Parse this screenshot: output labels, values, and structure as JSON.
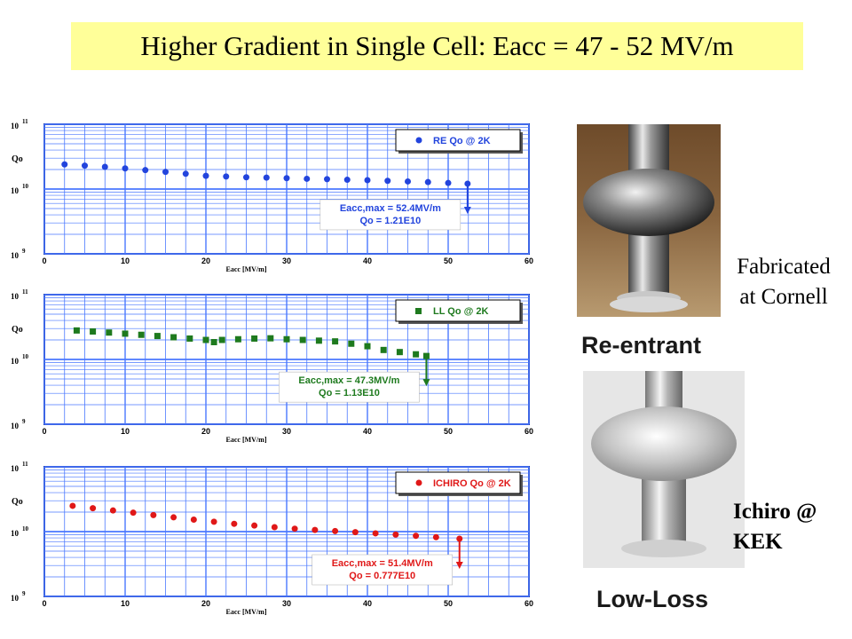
{
  "title": "Higher Gradient in Single Cell: Eacc = 47 - 52 MV/m",
  "captions": {
    "fabricated": [
      "Fabricated",
      "at Cornell"
    ],
    "ichiro": [
      "Ichiro @",
      "KEK"
    ]
  },
  "cavity_labels": {
    "re": "Re-entrant",
    "ll": "Low-Loss"
  },
  "chart_data": [
    {
      "type": "scatter",
      "xlabel": "Eacc [MV/m]",
      "ylabel": "Qo",
      "xlim": [
        0,
        60
      ],
      "ylim_log10": [
        9,
        11
      ],
      "x_ticks": [
        "0",
        "10",
        "20",
        "30",
        "40",
        "50",
        "60"
      ],
      "y_ticks": [
        "10 11",
        "10 10",
        "10 9"
      ],
      "legend": "RE Qo @ 2K",
      "legend_position": "top-right",
      "color": "#2244dd",
      "marker": "circle",
      "series": [
        {
          "name": "RE Qo @ 2K",
          "x": [
            2.5,
            5,
            7.5,
            10,
            12.5,
            15,
            17.5,
            20,
            22.5,
            25,
            27.5,
            30,
            32.5,
            35,
            37.5,
            40,
            42.5,
            45,
            47.5,
            50,
            52.4
          ],
          "y": [
            24000000000.0,
            23000000000.0,
            22000000000.0,
            20800000000.0,
            19600000000.0,
            18400000000.0,
            17200000000.0,
            16000000000.0,
            15600000000.0,
            15200000000.0,
            15000000000.0,
            14700000000.0,
            14400000000.0,
            14200000000.0,
            13900000000.0,
            13700000000.0,
            13400000000.0,
            13100000000.0,
            12800000000.0,
            12400000000.0,
            12100000000.0
          ]
        }
      ],
      "annotation": [
        "Eacc,max = 52.4MV/m",
        "Qo = 1.21E10"
      ],
      "arrow_x": 52.4
    },
    {
      "type": "scatter",
      "xlabel": "Eacc [MV/m]",
      "ylabel": "Qo",
      "xlim": [
        0,
        60
      ],
      "ylim_log10": [
        9,
        11
      ],
      "x_ticks": [
        "0",
        "10",
        "20",
        "30",
        "40",
        "50",
        "60"
      ],
      "y_ticks": [
        "10 11",
        "10 10",
        "10 9"
      ],
      "legend": "LL Qo @ 2K",
      "legend_position": "top-right",
      "color": "#1e7a1e",
      "marker": "square",
      "series": [
        {
          "name": "LL Qo @ 2K",
          "x": [
            4,
            6,
            8,
            10,
            12,
            14,
            16,
            18,
            20,
            21,
            22,
            24,
            26,
            28,
            30,
            32,
            34,
            36,
            38,
            40,
            42,
            44,
            46,
            47.3
          ],
          "y": [
            28000000000.0,
            27000000000.0,
            26000000000.0,
            25000000000.0,
            24000000000.0,
            23000000000.0,
            22000000000.0,
            21000000000.0,
            20000000000.0,
            18500000000.0,
            20000000000.0,
            20500000000.0,
            21000000000.0,
            21200000000.0,
            20500000000.0,
            20000000000.0,
            19500000000.0,
            19000000000.0,
            17500000000.0,
            16000000000.0,
            14000000000.0,
            13000000000.0,
            12000000000.0,
            11300000000.0
          ]
        }
      ],
      "annotation": [
        "Eacc,max = 47.3MV/m",
        "Qo = 1.13E10"
      ],
      "arrow_x": 47.3
    },
    {
      "type": "scatter",
      "xlabel": "Eacc [MV/m]",
      "ylabel": "Qo",
      "xlim": [
        0,
        60
      ],
      "ylim_log10": [
        9,
        11
      ],
      "x_ticks": [
        "0",
        "10",
        "20",
        "30",
        "40",
        "50",
        "60"
      ],
      "y_ticks": [
        "10 11",
        "10 10",
        "10 9"
      ],
      "legend": "ICHIRO Qo @ 2K",
      "legend_position": "top-right",
      "color": "#e01818",
      "marker": "circle",
      "series": [
        {
          "name": "ICHIRO Qo @ 2K",
          "x": [
            3.5,
            6,
            8.5,
            11,
            13.5,
            16,
            18.5,
            21,
            23.5,
            26,
            28.5,
            31,
            33.5,
            36,
            38.5,
            41,
            43.5,
            46,
            48.5,
            51.4
          ],
          "y": [
            25000000000.0,
            23000000000.0,
            21200000000.0,
            19600000000.0,
            18000000000.0,
            16600000000.0,
            15300000000.0,
            14200000000.0,
            13200000000.0,
            12400000000.0,
            11700000000.0,
            11100000000.0,
            10600000000.0,
            10200000000.0,
            9800000000.0,
            9400000000.0,
            9000000000.0,
            8600000000.0,
            8200000000.0,
            7770000000.0
          ]
        }
      ],
      "annotation": [
        "Eacc,max = 51.4MV/m",
        "Qo = 0.777E10"
      ],
      "arrow_x": 51.4
    }
  ]
}
